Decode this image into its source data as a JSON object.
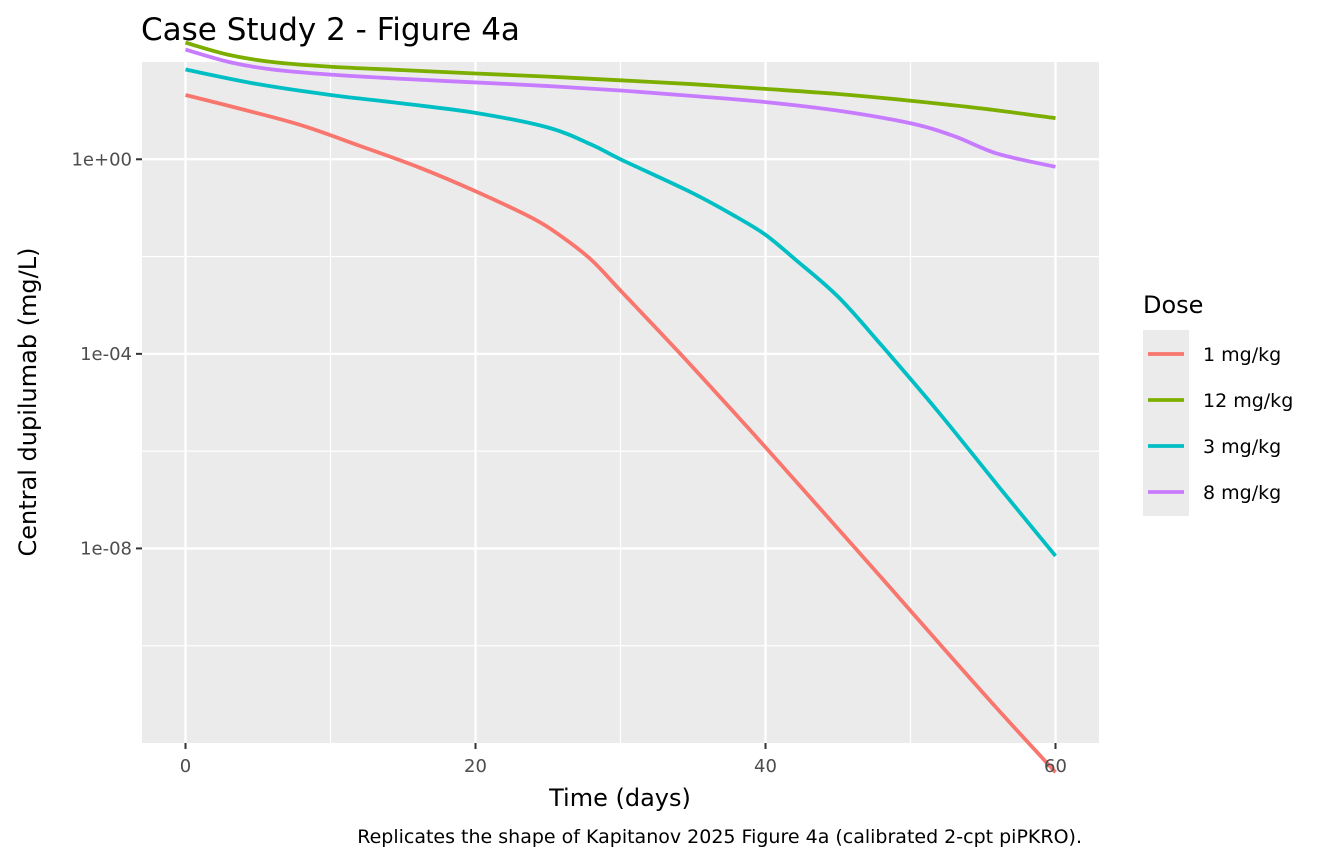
{
  "chart_data": {
    "type": "line",
    "title": "Case Study 2 - Figure 4a",
    "xlabel": "Time (days)",
    "ylabel": "Central dupilumab (mg/L)",
    "caption": "Replicates the shape of Kapitanov 2025 Figure 4a (calibrated 2-cpt piPKRO).",
    "y_scale": "log10",
    "xlim": [
      -3,
      63
    ],
    "ylim": [
      1e-12,
      100
    ],
    "x_ticks": [
      0,
      20,
      40,
      60
    ],
    "x_tick_labels": [
      "0",
      "20",
      "40",
      "60"
    ],
    "y_ticks": [
      1,
      0.0001,
      1e-08
    ],
    "y_tick_labels": [
      "1e+00",
      "1e-04",
      "1e-08"
    ],
    "grid": true,
    "legend": {
      "title": "Dose",
      "position": "right"
    },
    "series": [
      {
        "name": "1 mg/kg",
        "color": "#F8766D",
        "x": [
          0,
          4,
          8,
          12,
          16,
          20,
          24,
          26,
          28,
          30,
          34,
          38,
          40,
          44,
          48,
          52,
          56,
          60
        ],
        "y": [
          21,
          10.5,
          5,
          1.9,
          0.7,
          0.22,
          0.06,
          0.025,
          0.0085,
          0.002,
          0.00011,
          5.5e-06,
          1.2e-06,
          5.5e-08,
          2.5e-09,
          1.1e-10,
          5e-12,
          2.5e-13
        ]
      },
      {
        "name": "12 mg/kg",
        "color": "#7CAE00",
        "x": [
          0,
          3,
          6,
          10,
          15,
          20,
          25,
          30,
          35,
          40,
          45,
          50,
          55,
          60
        ],
        "y": [
          250,
          140,
          100,
          80,
          68,
          58,
          50,
          42,
          35,
          28,
          22,
          16,
          11,
          7
        ]
      },
      {
        "name": "3 mg/kg",
        "color": "#00BFC4",
        "x": [
          0,
          5,
          10,
          15,
          20,
          25,
          28,
          30,
          35,
          38,
          40,
          42,
          45,
          48,
          52,
          56,
          60
        ],
        "y": [
          70,
          35,
          21,
          14,
          9,
          4.5,
          2,
          1,
          0.2,
          0.065,
          0.028,
          0.009,
          0.0015,
          0.00015,
          6e-06,
          2e-07,
          7e-09
        ]
      },
      {
        "name": "8 mg/kg",
        "color": "#C77CFF",
        "x": [
          0,
          3,
          6,
          10,
          15,
          20,
          25,
          30,
          35,
          40,
          45,
          50,
          53,
          56,
          60
        ],
        "y": [
          180,
          100,
          70,
          55,
          45,
          38,
          32,
          26,
          20,
          15,
          10,
          5.5,
          3,
          1.3,
          0.7
        ]
      }
    ]
  }
}
